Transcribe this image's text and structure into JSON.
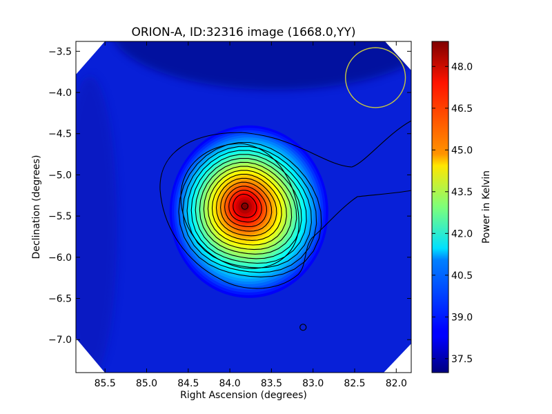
{
  "chart_data": {
    "type": "heatmap",
    "title": "ORION-A, ID:32316 image (1668.0,YY)",
    "xlabel": "Right Ascension (degrees)",
    "ylabel": "Declination (degrees)",
    "colorbar_label": "Power in Kelvin",
    "colormap": "jet",
    "xlim": [
      85.85,
      81.82
    ],
    "ylim": [
      -7.4,
      -3.38
    ],
    "clim": [
      37.0,
      48.9
    ],
    "x_ticks": [
      85.5,
      85.0,
      84.5,
      84.0,
      83.5,
      83.0,
      82.5,
      82.0
    ],
    "x_tick_labels": [
      "85.5",
      "85.0",
      "84.5",
      "84.0",
      "83.5",
      "83.0",
      "82.5",
      "82.0"
    ],
    "y_ticks": [
      -3.5,
      -4.0,
      -4.5,
      -5.0,
      -5.5,
      -6.0,
      -6.5,
      -7.0
    ],
    "y_tick_labels": [
      "−3.5",
      "−4.0",
      "−4.5",
      "−5.0",
      "−5.5",
      "−6.0",
      "−6.5",
      "−7.0"
    ],
    "colorbar_ticks": [
      37.5,
      39.0,
      40.5,
      42.0,
      43.5,
      45.0,
      46.5,
      48.0
    ],
    "colorbar_tick_labels": [
      "37.5",
      "39.0",
      "40.5",
      "42.0",
      "43.5",
      "45.0",
      "46.5",
      "48.0"
    ],
    "source_peak": {
      "ra": 83.82,
      "dec": -5.38,
      "peak_kelvin": 48.9
    },
    "markers": [
      {
        "ra": 83.82,
        "dec": -5.38
      },
      {
        "ra": 83.12,
        "dec": -6.85
      }
    ],
    "beam_circle": {
      "ra": 82.25,
      "dec": -3.82,
      "radius_deg": 0.36,
      "color": "#c8c840"
    },
    "grid": false
  }
}
